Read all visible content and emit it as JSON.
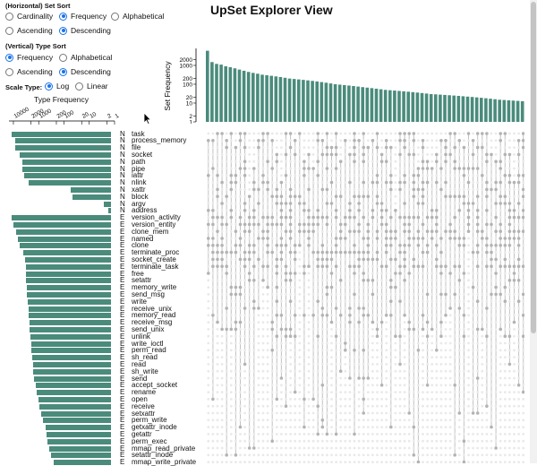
{
  "app_title": "UpSet Explorer View",
  "horizontal_sort": {
    "title": "(Horizontal) Set Sort",
    "options": [
      {
        "label": "Cardinality",
        "checked": false
      },
      {
        "label": "Frequency",
        "checked": true
      },
      {
        "label": "Alphabetical",
        "checked": false
      },
      {
        "label": "Ascending",
        "checked": false
      },
      {
        "label": "Descending",
        "checked": true
      }
    ]
  },
  "vertical_sort": {
    "title": "(Vertical) Type Sort",
    "options": [
      {
        "label": "Frequency",
        "checked": true
      },
      {
        "label": "Alphabetical",
        "checked": false
      },
      {
        "label": "Ascending",
        "checked": false
      },
      {
        "label": "Descending",
        "checked": true
      }
    ]
  },
  "scale_type": {
    "title": "Scale Type:",
    "options": [
      {
        "label": "Log",
        "checked": true
      },
      {
        "label": "Linear",
        "checked": false
      }
    ]
  },
  "type_frequency": {
    "title": "Type Frequency",
    "ticks": [
      "10000",
      "2000",
      "1000",
      "200",
      "100",
      "20",
      "10",
      "2",
      "1"
    ]
  },
  "set_frequency": {
    "label": "Set Frequency",
    "ticks": [
      "2000",
      "1000",
      "200",
      "100",
      "20",
      "10",
      "2",
      "1"
    ]
  },
  "bar_color": "#4a8b7c",
  "rows": [
    {
      "type": "N",
      "name": "task",
      "freq": 9000
    },
    {
      "type": "N",
      "name": "process_memory",
      "freq": 6500
    },
    {
      "type": "N",
      "name": "file",
      "freq": 6500
    },
    {
      "type": "N",
      "name": "socket",
      "freq": 4500
    },
    {
      "type": "N",
      "name": "path",
      "freq": 3500
    },
    {
      "type": "N",
      "name": "pipe",
      "freq": 3500
    },
    {
      "type": "N",
      "name": "iattr",
      "freq": 2800
    },
    {
      "type": "N",
      "name": "nlink",
      "freq": 2000
    },
    {
      "type": "N",
      "name": "xattr",
      "freq": 40
    },
    {
      "type": "N",
      "name": "block",
      "freq": 35
    },
    {
      "type": "N",
      "name": "argv",
      "freq": 2
    },
    {
      "type": "N",
      "name": "address",
      "freq": 1.3
    },
    {
      "type": "E",
      "name": "version_activity",
      "freq": 9500
    },
    {
      "type": "E",
      "name": "version_entity",
      "freq": 8000
    },
    {
      "type": "E",
      "name": "clone_mem",
      "freq": 6000
    },
    {
      "type": "E",
      "name": "named",
      "freq": 5000
    },
    {
      "type": "E",
      "name": "clone",
      "freq": 4200
    },
    {
      "type": "E",
      "name": "terminate_proc",
      "freq": 3200
    },
    {
      "type": "E",
      "name": "socket_create",
      "freq": 2700
    },
    {
      "type": "E",
      "name": "terminate_task",
      "freq": 2500
    },
    {
      "type": "E",
      "name": "free",
      "freq": 2500
    },
    {
      "type": "E",
      "name": "setattr",
      "freq": 2400
    },
    {
      "type": "E",
      "name": "memory_write",
      "freq": 2300
    },
    {
      "type": "E",
      "name": "send_msg",
      "freq": 2200
    },
    {
      "type": "E",
      "name": "write",
      "freq": 2100
    },
    {
      "type": "E",
      "name": "receive_unix",
      "freq": 2000
    },
    {
      "type": "E",
      "name": "memory_read",
      "freq": 1900
    },
    {
      "type": "E",
      "name": "receive_msg",
      "freq": 1800
    },
    {
      "type": "E",
      "name": "send_unix",
      "freq": 1700
    },
    {
      "type": "E",
      "name": "unlink",
      "freq": 1600
    },
    {
      "type": "E",
      "name": "write_ioctl",
      "freq": 1500
    },
    {
      "type": "E",
      "name": "perm_read",
      "freq": 1450
    },
    {
      "type": "E",
      "name": "sh_read",
      "freq": 1350
    },
    {
      "type": "E",
      "name": "read",
      "freq": 1300
    },
    {
      "type": "E",
      "name": "sh_write",
      "freq": 1250
    },
    {
      "type": "E",
      "name": "send",
      "freq": 1150
    },
    {
      "type": "E",
      "name": "accept_socket",
      "freq": 1000
    },
    {
      "type": "E",
      "name": "rename",
      "freq": 900
    },
    {
      "type": "E",
      "name": "open",
      "freq": 800
    },
    {
      "type": "E",
      "name": "receive",
      "freq": 700
    },
    {
      "type": "E",
      "name": "setxattr",
      "freq": 600
    },
    {
      "type": "E",
      "name": "perm_write",
      "freq": 500
    },
    {
      "type": "E",
      "name": "getxattr_inode",
      "freq": 420
    },
    {
      "type": "E",
      "name": "getattr",
      "freq": 380
    },
    {
      "type": "E",
      "name": "perm_exec",
      "freq": 330
    },
    {
      "type": "E",
      "name": "mmap_read_private",
      "freq": 280
    },
    {
      "type": "E",
      "name": "setattr_inode",
      "freq": 240
    },
    {
      "type": "E",
      "name": "mmap_write_private",
      "freq": 200
    }
  ],
  "set_bars": [
    6000,
    1500,
    1200,
    1100,
    900,
    800,
    700,
    600,
    520,
    450,
    400,
    360,
    320,
    300,
    280,
    260,
    240,
    220,
    200,
    190,
    180,
    170,
    160,
    150,
    140,
    130,
    120,
    110,
    100,
    95,
    90,
    85,
    80,
    75,
    70,
    66,
    62,
    58,
    54,
    50,
    48,
    46,
    44,
    42,
    40,
    38,
    36,
    34,
    32,
    30,
    29,
    28,
    27,
    26,
    25,
    24,
    23,
    22,
    21,
    20,
    19,
    18,
    17,
    16,
    15,
    14.5,
    14,
    13.5,
    13,
    12.5
  ]
}
